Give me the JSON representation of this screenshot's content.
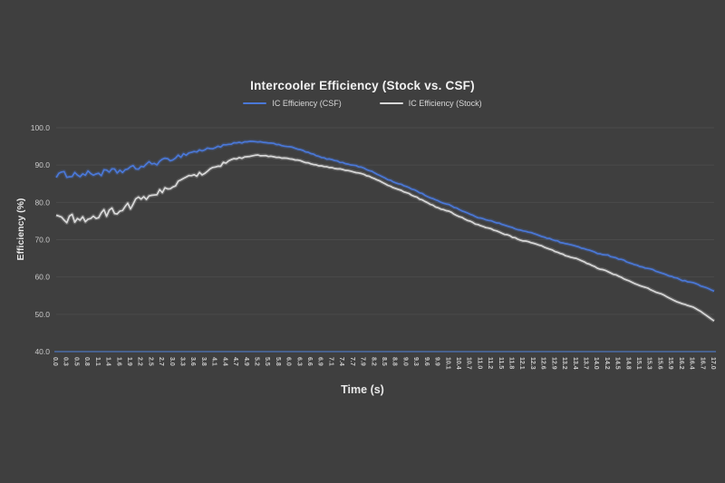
{
  "window": {
    "background": "#3f3f3f"
  },
  "chart_data": {
    "type": "line",
    "title": "Intercooler Efficiency (Stock vs. CSF)",
    "xlabel": "Time (s)",
    "ylabel": "Efficiency (%)",
    "ylim": [
      40,
      100
    ],
    "ytick_step": 10,
    "ytick_labels": [
      "40.0",
      "50.0",
      "60.0",
      "70.0",
      "80.0",
      "90.0",
      "100.0"
    ],
    "grid": true,
    "legend_position": "top-center",
    "title_color": "#f2f2f2",
    "gridline_color": "#4b4b4b",
    "axis_line_color": "#4a6da8",
    "tick_label_color": "#c9c9c9",
    "x_labels": [
      "0.0",
      "0.3",
      "0.5",
      "0.8",
      "1.1",
      "1.4",
      "1.6",
      "1.9",
      "2.2",
      "2.5",
      "2.7",
      "3.0",
      "3.3",
      "3.6",
      "3.8",
      "4.1",
      "4.4",
      "4.7",
      "4.9",
      "5.2",
      "5.5",
      "5.8",
      "6.0",
      "6.3",
      "6.6",
      "6.9",
      "7.1",
      "7.4",
      "7.7",
      "7.9",
      "8.2",
      "8.5",
      "8.8",
      "9.0",
      "9.3",
      "9.6",
      "9.9",
      "10.1",
      "10.4",
      "10.7",
      "11.0",
      "11.2",
      "11.5",
      "11.8",
      "12.1",
      "12.3",
      "12.6",
      "12.9",
      "13.2",
      "13.4",
      "13.7",
      "14.0",
      "14.2",
      "14.5",
      "14.8",
      "15.1",
      "15.3",
      "15.6",
      "15.9",
      "16.2",
      "16.4",
      "16.7",
      "17.0"
    ],
    "series": [
      {
        "name": "IC Efficiency (CSF)",
        "color": "#4a78d8",
        "noise_amplitude": 0.85,
        "values": [
          87.4,
          87.5,
          87.5,
          87.6,
          87.8,
          88.1,
          88.4,
          88.9,
          89.6,
          90.4,
          91.0,
          91.9,
          92.8,
          93.6,
          94.1,
          94.8,
          95.3,
          95.9,
          96.2,
          96.3,
          96.0,
          95.4,
          94.9,
          94.1,
          93.1,
          92.0,
          91.4,
          90.6,
          90.0,
          89.2,
          87.9,
          86.5,
          85.2,
          84.3,
          83.0,
          81.6,
          80.3,
          79.4,
          78.1,
          76.8,
          75.7,
          75.1,
          74.1,
          73.2,
          72.3,
          71.7,
          70.7,
          69.8,
          68.9,
          68.3,
          67.3,
          66.4,
          65.8,
          64.9,
          63.9,
          62.8,
          62.1,
          61.1,
          60.1,
          59.1,
          58.4,
          57.4,
          56.2
        ]
      },
      {
        "name": "IC Efficiency (Stock)",
        "color": "#d9d9d9",
        "noise_amplitude": 1.25,
        "values": [
          75.4,
          75.6,
          75.5,
          75.8,
          76.4,
          77.3,
          78.1,
          79.4,
          80.8,
          82.1,
          83.0,
          84.5,
          85.9,
          87.3,
          88.2,
          89.5,
          90.7,
          91.8,
          92.3,
          92.6,
          92.4,
          92.0,
          91.7,
          91.1,
          90.4,
          89.7,
          89.3,
          88.8,
          88.2,
          87.5,
          86.3,
          85.0,
          83.6,
          82.7,
          81.3,
          79.9,
          78.5,
          77.6,
          76.2,
          74.9,
          73.7,
          72.9,
          71.8,
          70.7,
          69.7,
          69.0,
          68.0,
          66.9,
          65.8,
          65.0,
          63.7,
          62.4,
          61.5,
          60.2,
          58.9,
          57.6,
          56.7,
          55.4,
          54.1,
          52.8,
          51.9,
          50.3,
          48.2
        ]
      }
    ]
  }
}
